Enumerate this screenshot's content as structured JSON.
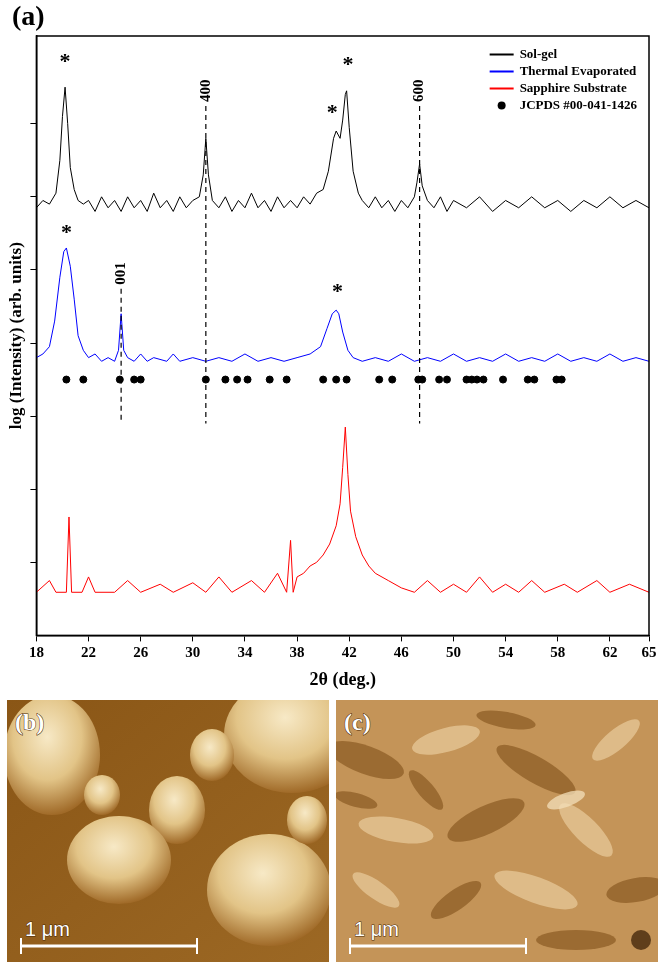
{
  "chart_data": {
    "type": "line",
    "panel": "(a)",
    "x_label": "2θ (deg.)",
    "y_label": "log (Intensity) (arb. units)",
    "xlim": [
      18,
      65
    ],
    "xticks": [
      18,
      22,
      26,
      30,
      34,
      38,
      42,
      46,
      50,
      54,
      58,
      62,
      65
    ],
    "ylim": [
      0,
      8.2
    ],
    "yticks": [
      1,
      2,
      3,
      4,
      5,
      6,
      7
    ],
    "tick_labels": "x",
    "grid": false,
    "legend": "top-right",
    "series": [
      {
        "name": "Sol-gel",
        "color": "#000000",
        "x": [
          18.0,
          18.5,
          19.0,
          19.5,
          19.8,
          20.0,
          20.2,
          20.4,
          20.6,
          20.9,
          21.2,
          21.6,
          22.0,
          22.5,
          23.0,
          23.5,
          24.0,
          24.5,
          25.0,
          25.5,
          26.0,
          26.5,
          27.0,
          27.5,
          28.0,
          28.5,
          29.0,
          29.5,
          30.0,
          30.5,
          30.8,
          31.0,
          31.2,
          31.5,
          32.0,
          32.5,
          33.0,
          33.5,
          34.0,
          34.5,
          35.0,
          35.5,
          36.0,
          36.5,
          37.0,
          37.5,
          38.0,
          38.5,
          39.0,
          39.5,
          40.0,
          40.4,
          40.8,
          41.0,
          41.3,
          41.5,
          41.7,
          41.8,
          42.0,
          42.3,
          42.7,
          43.0,
          43.5,
          44.0,
          44.5,
          45.0,
          45.5,
          46.0,
          46.5,
          47.0,
          47.2,
          47.4,
          47.6,
          48.0,
          48.5,
          49.0,
          49.5,
          50.0,
          51,
          52,
          53,
          54,
          55,
          56,
          57,
          58,
          59,
          60,
          61,
          62,
          63,
          64,
          65
        ],
        "values": [
          5.85,
          5.95,
          5.9,
          6.05,
          6.5,
          7.1,
          7.5,
          7.0,
          6.4,
          6.1,
          5.95,
          5.9,
          5.95,
          5.8,
          6.0,
          5.85,
          5.95,
          5.8,
          6.0,
          5.85,
          5.95,
          5.8,
          6.05,
          5.85,
          5.95,
          5.8,
          6.0,
          5.85,
          5.95,
          6.0,
          6.3,
          6.8,
          6.3,
          5.95,
          5.85,
          6.0,
          5.8,
          5.95,
          5.85,
          6.05,
          5.85,
          5.95,
          5.8,
          6.0,
          5.85,
          5.95,
          5.85,
          6.0,
          5.9,
          6.05,
          6.1,
          6.35,
          6.8,
          6.9,
          6.8,
          7.05,
          7.4,
          7.45,
          6.95,
          6.35,
          6.05,
          5.95,
          5.85,
          6.0,
          5.85,
          5.95,
          5.8,
          5.95,
          5.85,
          6.0,
          6.2,
          6.45,
          6.15,
          5.95,
          5.85,
          6.0,
          5.8,
          5.95,
          5.85,
          6.0,
          5.8,
          5.95,
          5.85,
          6.0,
          5.85,
          5.95,
          5.8,
          5.95,
          5.85,
          6.0,
          5.85,
          5.95,
          5.85
        ]
      },
      {
        "name": "Thermal Evaporated",
        "color": "#0000ff",
        "x": [
          18.0,
          18.5,
          19.0,
          19.4,
          19.8,
          20.1,
          20.3,
          20.6,
          20.9,
          21.2,
          21.6,
          22.0,
          22.5,
          23.0,
          23.5,
          24.0,
          24.3,
          24.5,
          24.7,
          25.0,
          25.5,
          26,
          26.5,
          27,
          28,
          28.5,
          29,
          30,
          31,
          32,
          33,
          34,
          35,
          36,
          37,
          38,
          39,
          39.8,
          40.3,
          40.7,
          41.0,
          41.2,
          41.5,
          41.9,
          42.3,
          43,
          44,
          45,
          46,
          47,
          48,
          49,
          50,
          51,
          52,
          53,
          54,
          55,
          56,
          57,
          58,
          59,
          60,
          61,
          62,
          63,
          64,
          65
        ],
        "values": [
          3.8,
          3.85,
          3.95,
          4.3,
          4.9,
          5.25,
          5.3,
          5.05,
          4.6,
          4.1,
          3.9,
          3.8,
          3.85,
          3.75,
          3.8,
          3.75,
          3.9,
          4.4,
          3.9,
          3.8,
          3.75,
          3.85,
          3.75,
          3.8,
          3.75,
          3.85,
          3.75,
          3.8,
          3.75,
          3.8,
          3.75,
          3.85,
          3.75,
          3.8,
          3.75,
          3.8,
          3.85,
          3.95,
          4.2,
          4.4,
          4.45,
          4.4,
          4.15,
          3.9,
          3.8,
          3.75,
          3.8,
          3.75,
          3.85,
          3.75,
          3.8,
          3.75,
          3.85,
          3.75,
          3.8,
          3.75,
          3.85,
          3.75,
          3.8,
          3.75,
          3.85,
          3.75,
          3.8,
          3.75,
          3.85,
          3.75,
          3.8,
          3.75
        ]
      },
      {
        "name": "Sapphire Substrate",
        "color": "#ff0000",
        "x": [
          18,
          19,
          19.5,
          20.3,
          20.5,
          20.7,
          21.5,
          22,
          22.5,
          24,
          25,
          26,
          27.5,
          28.5,
          30,
          31,
          32,
          33,
          34.5,
          35.5,
          36.5,
          37.2,
          37.5,
          37.7,
          38.0,
          38.5,
          39,
          39.5,
          40,
          40.5,
          41,
          41.3,
          41.5,
          41.7,
          41.9,
          42.1,
          42.5,
          43,
          43.5,
          44,
          45,
          46,
          47,
          48,
          49,
          50,
          51,
          52,
          53,
          54,
          55,
          56,
          57,
          58.5,
          59.5,
          61,
          62,
          63.5,
          65
        ],
        "values": [
          0.59,
          0.75,
          0.59,
          0.59,
          1.62,
          0.59,
          0.59,
          0.8,
          0.59,
          0.59,
          0.75,
          0.59,
          0.7,
          0.59,
          0.72,
          0.59,
          0.8,
          0.59,
          0.75,
          0.59,
          0.85,
          0.59,
          1.3,
          0.59,
          0.8,
          0.85,
          0.95,
          1.0,
          1.1,
          1.25,
          1.5,
          1.8,
          2.3,
          2.85,
          2.2,
          1.7,
          1.35,
          1.1,
          0.95,
          0.85,
          0.75,
          0.65,
          0.59,
          0.75,
          0.59,
          0.7,
          0.59,
          0.8,
          0.59,
          0.7,
          0.59,
          0.75,
          0.59,
          0.7,
          0.59,
          0.75,
          0.59,
          0.7,
          0.59
        ]
      },
      {
        "name": "JCPDS #00-041-1426",
        "color": "#000000",
        "type": "scatter",
        "marker": "circle",
        "x": [
          20.3,
          21.6,
          24.4,
          25.5,
          26.0,
          31.0,
          32.5,
          33.4,
          34.2,
          35.9,
          37.2,
          40.0,
          41.0,
          41.8,
          44.3,
          45.3,
          47.3,
          47.6,
          48.9,
          49.5,
          51.0,
          51.4,
          51.8,
          52.3,
          53.8,
          55.7,
          56.2,
          57.9,
          58.3
        ],
        "values": [
          3.5,
          3.5,
          3.5,
          3.5,
          3.5,
          3.5,
          3.5,
          3.5,
          3.5,
          3.5,
          3.5,
          3.5,
          3.5,
          3.5,
          3.5,
          3.5,
          3.5,
          3.5,
          3.5,
          3.5,
          3.5,
          3.5,
          3.5,
          3.5,
          3.5,
          3.5,
          3.5,
          3.5,
          3.5
        ]
      }
    ],
    "annotations": [
      {
        "text": "*",
        "x": 20.2,
        "y": 7.9
      },
      {
        "text": "*",
        "x": 40.7,
        "y": 7.2
      },
      {
        "text": "*",
        "x": 41.9,
        "y": 7.85
      },
      {
        "text": "400",
        "x": 31.0,
        "y": 7.45,
        "line_to": 2.9
      },
      {
        "text": "600",
        "x": 47.4,
        "y": 7.45,
        "line_to": 2.9
      },
      {
        "text": "*",
        "x": 20.3,
        "y": 5.55
      },
      {
        "text": "001",
        "x": 24.5,
        "y": 4.95,
        "line_to": 2.9
      },
      {
        "text": "*",
        "x": 41.1,
        "y": 4.75
      }
    ]
  },
  "images": [
    {
      "label": "(b)",
      "scale_bar": "1 μm"
    },
    {
      "label": "(c)",
      "scale_bar": "1 μm"
    }
  ]
}
